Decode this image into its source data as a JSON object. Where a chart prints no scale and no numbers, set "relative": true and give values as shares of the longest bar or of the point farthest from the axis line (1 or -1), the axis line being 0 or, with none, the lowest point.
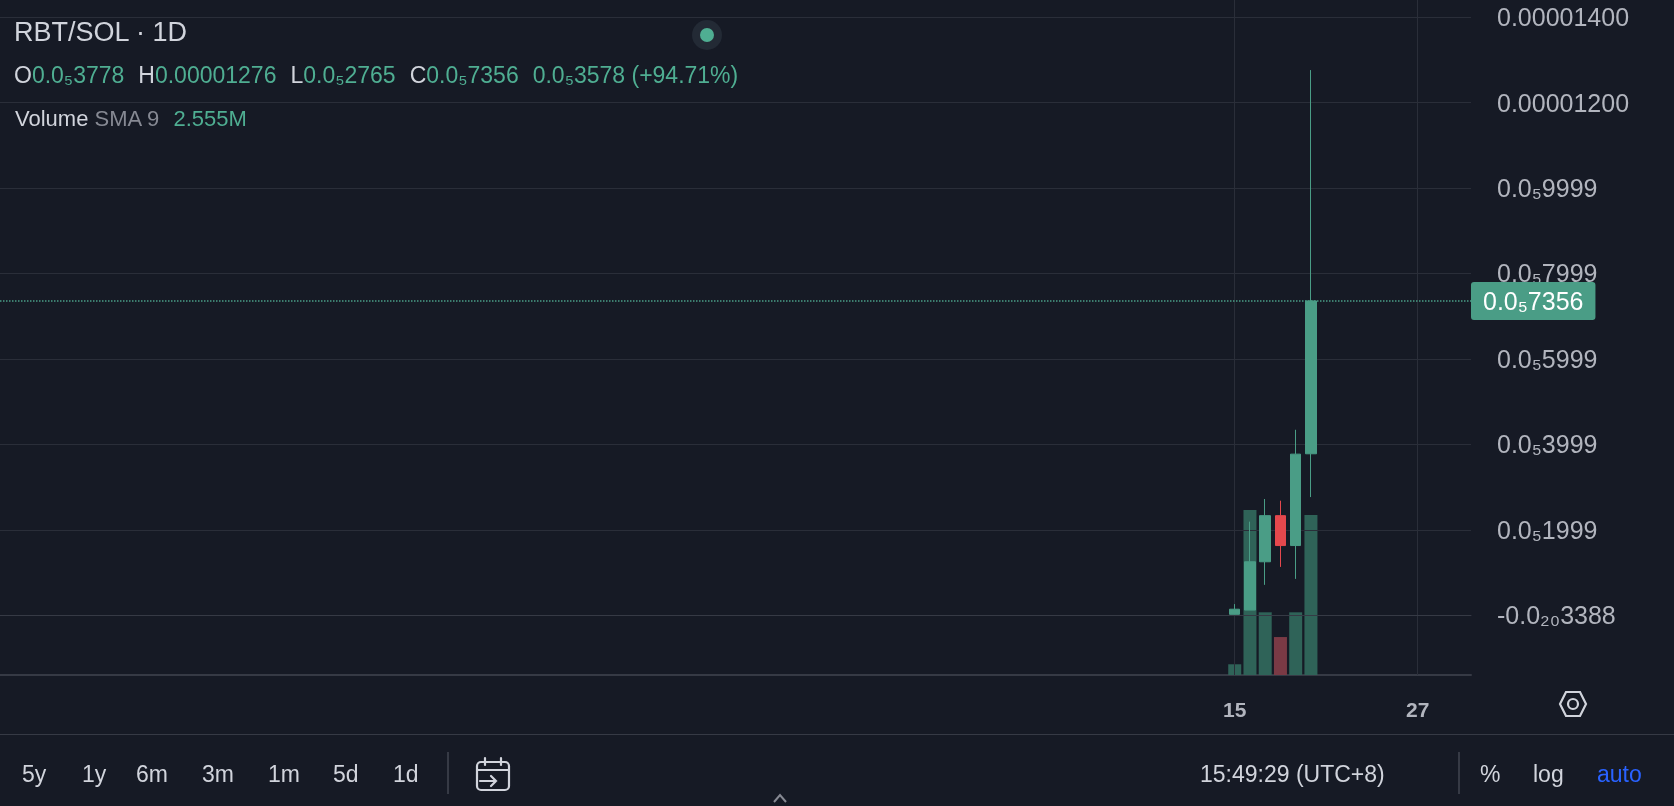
{
  "chart_data": [
    {
      "type": "candlestick",
      "title": "RBT/SOL · 1D",
      "x": [
        15,
        16,
        17,
        18,
        19,
        20
      ],
      "ohlc": [
        [
          2e-08,
          2.6e-07,
          2e-08,
          1.4e-07
        ],
        [
          1.2e-07,
          2.19e-06,
          1.2e-07,
          1.25e-06
        ],
        [
          1.25e-06,
          2.72e-06,
          7.1e-07,
          2.33e-06
        ],
        [
          2.33e-06,
          2.68e-06,
          1.13e-06,
          1.63e-06
        ],
        [
          1.63e-06,
          4.34e-06,
          8.5e-07,
          3.77e-06
        ],
        [
          3.778e-06,
          1.276e-05,
          2.765e-06,
          7.356e-06
        ]
      ],
      "colors": [
        "#4a9d86",
        "#4a9d86",
        "#4a9d86",
        "#e5484d",
        "#4a9d86",
        "#4a9d86"
      ],
      "xlim": [
        -66,
        30.5
      ],
      "xticks": [
        15,
        27
      ],
      "ylim": [
        -1.4e-06,
        1.44e-05
      ],
      "yticks": [
        {
          "value": 1.4e-05,
          "label": "0.00001400"
        },
        {
          "value": 1.2e-05,
          "label": "0.00001200"
        },
        {
          "value": 9.999e-06,
          "label": "0.0₅9999"
        },
        {
          "value": 7.999e-06,
          "label": "0.0₅7999"
        },
        {
          "value": 5.999e-06,
          "label": "0.0₅5999"
        },
        {
          "value": 3.999e-06,
          "label": "0.0₅3999"
        },
        {
          "value": 1.999e-06,
          "label": "0.0₅1999"
        },
        {
          "value": -3.388e-24,
          "label": "-0.0₂₀3388"
        }
      ],
      "grid": true,
      "ref_lines": [
        {
          "axis": "y",
          "value": 7.356e-06,
          "label": "0.0₅7356",
          "color": "#4a9d86",
          "line_style": "dotted"
        }
      ],
      "annotations": [
        "O0.0₅3778",
        "H0.00001276",
        "L0.0₅2765",
        "C0.0₅7356",
        "0.0₅3578 (+94.71%)",
        "Volume SMA 9 2.555M",
        "5y",
        "1y",
        "6m",
        "3m",
        "1m",
        "5d",
        "1d",
        "15:49:29 (UTC+8)",
        "%",
        "log",
        "auto"
      ]
    },
    {
      "type": "bar",
      "relative": true,
      "x": [
        15,
        16,
        17,
        18,
        19,
        20
      ],
      "values": [
        0.065,
        1,
        0.38,
        0.23,
        0.38,
        0.97
      ],
      "colors": [
        "#2f6358",
        "#2f6358",
        "#2f6358",
        "#7a3a45",
        "#2f6358",
        "#2f6358"
      ],
      "xlim": [
        -66,
        30.5
      ]
    }
  ]
}
